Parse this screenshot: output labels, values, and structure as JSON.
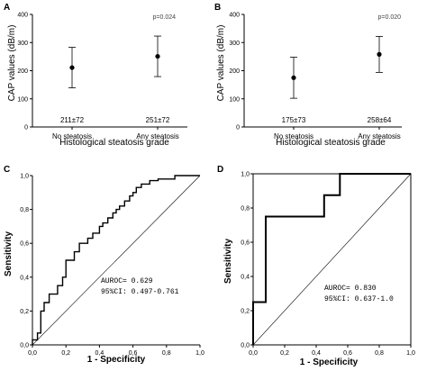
{
  "chart_data": [
    {
      "panel": "A",
      "type": "scatter",
      "ylabel": "CAP values (dB/m)",
      "xlabel": "Histological steatosis grade",
      "ylim": [
        0,
        400
      ],
      "yticks": [
        0,
        100,
        200,
        300,
        400
      ],
      "categories": [
        "No steatosis",
        "Any steatosis"
      ],
      "means": [
        211,
        251
      ],
      "errors": [
        72,
        72
      ],
      "value_labels": [
        "211±72",
        "251±72"
      ],
      "p_value": "p=0.024"
    },
    {
      "panel": "B",
      "type": "scatter",
      "ylabel": "CAP values (dB/m)",
      "xlabel": "Histological steatosis grade",
      "ylim": [
        0,
        400
      ],
      "yticks": [
        0,
        100,
        200,
        300,
        400
      ],
      "categories": [
        "No steatosis",
        "Any steatosis"
      ],
      "means": [
        175,
        258
      ],
      "errors": [
        73,
        64
      ],
      "value_labels": [
        "175±73",
        "258±64"
      ],
      "p_value": "p=0.020"
    },
    {
      "panel": "C",
      "type": "line",
      "ylabel": "Sensitivity",
      "xlabel": "1 - Specificity",
      "xlim": [
        0,
        1
      ],
      "ylim": [
        0,
        1
      ],
      "xticks": [
        "0,0",
        "0,2",
        "0,4",
        "0,6",
        "0,8",
        "1,0"
      ],
      "yticks": [
        "0,0",
        "0,2",
        "0,4",
        "0,6",
        "0,8",
        "1,0"
      ],
      "auroc": "AUROC= 0.629",
      "ci": "95%CI: 0.497-0.761",
      "roc_x": [
        0,
        0,
        0.03,
        0.03,
        0.05,
        0.05,
        0.07,
        0.07,
        0.1,
        0.1,
        0.15,
        0.15,
        0.18,
        0.18,
        0.2,
        0.2,
        0.25,
        0.25,
        0.28,
        0.28,
        0.33,
        0.33,
        0.36,
        0.36,
        0.4,
        0.4,
        0.42,
        0.42,
        0.45,
        0.45,
        0.48,
        0.48,
        0.5,
        0.5,
        0.52,
        0.52,
        0.55,
        0.55,
        0.58,
        0.58,
        0.6,
        0.6,
        0.62,
        0.62,
        0.65,
        0.65,
        0.7,
        0.7,
        0.75,
        0.75,
        0.85,
        0.85,
        1.0
      ],
      "roc_y": [
        0,
        0.03,
        0.03,
        0.07,
        0.07,
        0.2,
        0.2,
        0.25,
        0.25,
        0.3,
        0.3,
        0.35,
        0.35,
        0.4,
        0.4,
        0.5,
        0.5,
        0.55,
        0.55,
        0.6,
        0.6,
        0.63,
        0.63,
        0.66,
        0.66,
        0.7,
        0.7,
        0.72,
        0.72,
        0.75,
        0.75,
        0.78,
        0.78,
        0.8,
        0.8,
        0.82,
        0.82,
        0.85,
        0.85,
        0.88,
        0.88,
        0.9,
        0.9,
        0.93,
        0.93,
        0.95,
        0.95,
        0.97,
        0.97,
        0.98,
        0.98,
        1.0,
        1.0
      ],
      "reference_line": [
        [
          0,
          0
        ],
        [
          1,
          1
        ]
      ]
    },
    {
      "panel": "D",
      "type": "line",
      "ylabel": "Sensitivity",
      "xlabel": "1 - Specificity",
      "xlim": [
        0,
        1
      ],
      "ylim": [
        0,
        1
      ],
      "xticks": [
        "0,0",
        "0,2",
        "0,4",
        "0,6",
        "0,8",
        "1,0"
      ],
      "yticks": [
        "0,0",
        "0,2",
        "0,4",
        "0,6",
        "0,8",
        "1,0"
      ],
      "auroc": "AUROC= 0.830",
      "ci": "95%CI: 0.637-1.0",
      "roc_x": [
        0,
        0,
        0.08,
        0.08,
        0.45,
        0.45,
        0.55,
        0.55,
        1.0
      ],
      "roc_y": [
        0,
        0.25,
        0.25,
        0.75,
        0.75,
        0.875,
        0.875,
        1.0,
        1.0
      ],
      "reference_line": [
        [
          0,
          0
        ],
        [
          1,
          1
        ]
      ]
    }
  ]
}
